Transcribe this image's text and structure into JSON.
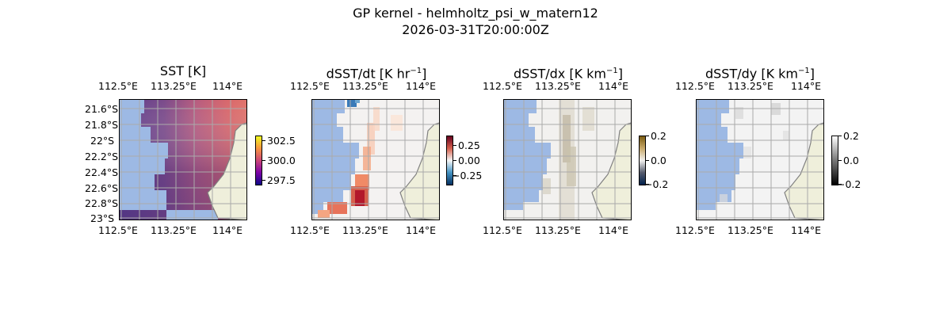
{
  "figure": {
    "title_line1": "GP kernel - helmholtz_psi_w_matern12",
    "title_line2": "2026-03-31T20:00:00Z"
  },
  "panels": [
    {
      "title": "SST [K]",
      "colormap": "plasma",
      "colorbar_ticks": [
        "302.5",
        "300.0",
        "297.5"
      ],
      "has_lat_labels": true
    },
    {
      "title_base": "dSST/dt [K hr",
      "title_sup": "−1",
      "title_end": "]",
      "colormap": "RdBu_r",
      "colorbar_ticks": [
        "0.25",
        "0.00",
        "−0.25"
      ],
      "has_lat_labels": false
    },
    {
      "title_base": "dSST/dx [K km",
      "title_sup": "−1",
      "title_end": "]",
      "colormap": "cividis-like",
      "colorbar_ticks": [
        "0.2",
        "0.0",
        "−0.2"
      ],
      "has_lat_labels": false
    },
    {
      "title_base": "dSST/dy [K km",
      "title_sup": "−1",
      "title_end": "]",
      "colormap": "grayscale",
      "colorbar_ticks": [
        "0.2",
        "0.0",
        "−0.2"
      ],
      "has_lat_labels": false
    }
  ],
  "axes": {
    "lon_ticks": [
      "112.5°E",
      "113.25°E",
      "114°E"
    ],
    "lat_ticks": [
      "21.6°S",
      "21.8°S",
      "22°S",
      "22.2°S",
      "22.4°S",
      "22.6°S",
      "22.8°S",
      "23°S"
    ]
  },
  "colors": {
    "ocean_mask": "#9db9e4",
    "land": "#efefdb",
    "coast": "#808080",
    "grid": "#aaaaaa"
  }
}
